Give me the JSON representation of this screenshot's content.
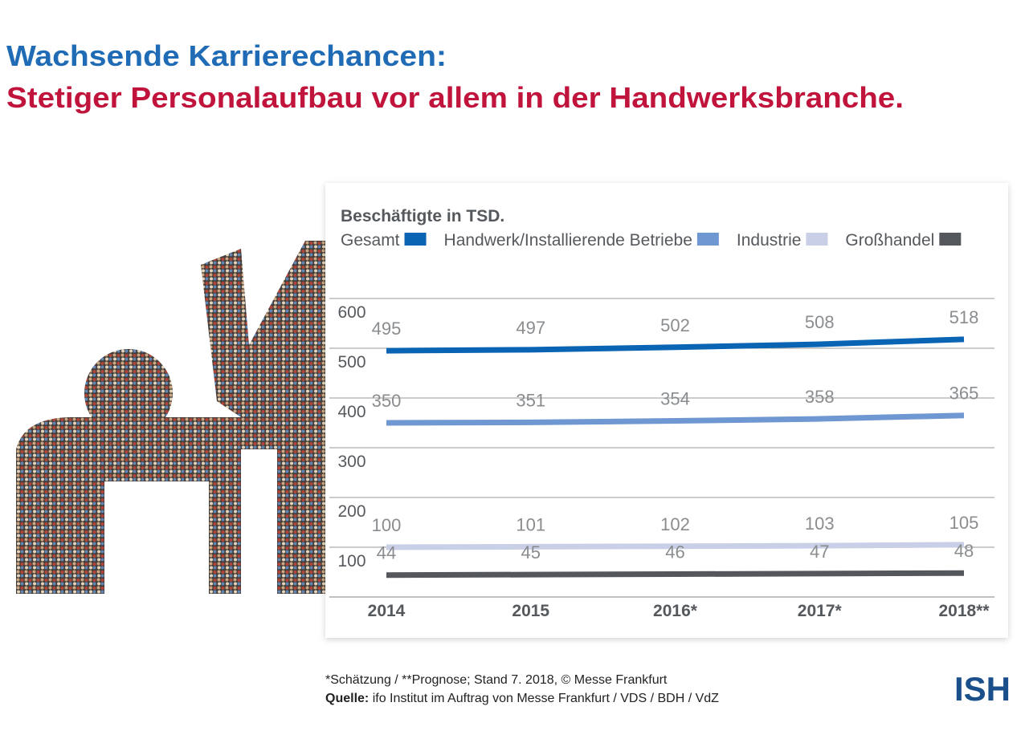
{
  "header": {
    "title": "Wachsende Karrierechancen:",
    "subtitle": "Stetiger Personalaufbau vor allem in der Handwerksbranche."
  },
  "chart_data": {
    "type": "line",
    "title": "Beschäftigte in TSD.",
    "categories": [
      "2014",
      "2015",
      "2016*",
      "2017*",
      "2018**"
    ],
    "series": [
      {
        "name": "Gesamt",
        "color": "#0a64b4",
        "values": [
          495,
          497,
          502,
          508,
          518
        ]
      },
      {
        "name": "Handwerk/Installierende Betriebe",
        "color": "#6f97d2",
        "values": [
          350,
          351,
          354,
          358,
          365
        ]
      },
      {
        "name": "Industrie",
        "color": "#c9cfe6",
        "values": [
          100,
          101,
          102,
          103,
          105
        ]
      },
      {
        "name": "Großhandel",
        "color": "#54585c",
        "values": [
          44,
          45,
          46,
          47,
          48
        ]
      }
    ],
    "ylim": [
      0,
      600
    ],
    "yticks": [
      100,
      200,
      300,
      400,
      500,
      600
    ],
    "grid": true,
    "legend": "top"
  },
  "footer": {
    "note": "*Schätzung / **Prognose; Stand 7. 2018, © Messe Frankfurt",
    "source_label": "Quelle:",
    "source": "ifo Institut im Auftrag von Messe Frankfurt / VDS / BDH / VdZ"
  },
  "logo": "ISH"
}
